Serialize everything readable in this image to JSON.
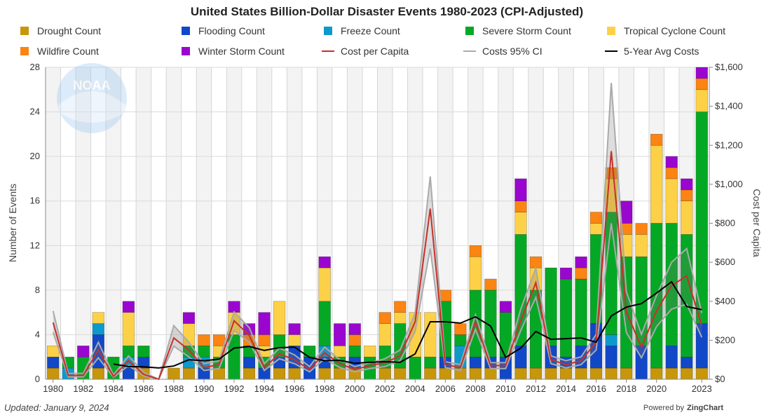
{
  "chart_data": {
    "type": "bar",
    "stacked": true,
    "title": "United States Billion-Dollar Disaster Events 1980-2023 (CPI-Adjusted)",
    "ylabel": "Number of Events",
    "y2label": "Cost per Capita",
    "ylim": [
      0,
      28
    ],
    "y2lim": [
      0,
      1600
    ],
    "yticks": [
      "0",
      "4",
      "8",
      "12",
      "16",
      "20",
      "24",
      "28"
    ],
    "y2ticks": [
      "$0",
      "$200",
      "$400",
      "$600",
      "$800",
      "$1,000",
      "$1,200",
      "$1,400",
      "$1,600"
    ],
    "xticklabels": [
      "1980",
      "1982",
      "1984",
      "1986",
      "1988",
      "1990",
      "1992",
      "1994",
      "1996",
      "1998",
      "2000",
      "2002",
      "2004",
      "2006",
      "2008",
      "2010",
      "2012",
      "2014",
      "2016",
      "2018",
      "2020",
      "2023"
    ],
    "grid": true,
    "legend": "top",
    "categories": [
      1980,
      1981,
      1982,
      1983,
      1984,
      1985,
      1986,
      1987,
      1988,
      1989,
      1990,
      1991,
      1992,
      1993,
      1994,
      1995,
      1996,
      1997,
      1998,
      1999,
      2000,
      2001,
      2002,
      2003,
      2004,
      2005,
      2006,
      2007,
      2008,
      2009,
      2010,
      2011,
      2012,
      2013,
      2014,
      2015,
      2016,
      2017,
      2018,
      2019,
      2020,
      2021,
      2022,
      2023
    ],
    "series": [
      {
        "name": "Drought Count",
        "color": "#c8960a",
        "values": [
          1,
          0,
          0,
          1,
          0,
          0,
          1,
          0,
          1,
          1,
          0,
          1,
          0,
          1,
          0,
          1,
          1,
          0,
          1,
          1,
          1,
          0,
          1,
          1,
          0,
          1,
          1,
          1,
          1,
          1,
          0,
          1,
          1,
          1,
          1,
          1,
          1,
          1,
          1,
          0,
          1,
          1,
          1,
          1
        ]
      },
      {
        "name": "Flooding Count",
        "color": "#1148c8",
        "values": [
          1,
          0,
          0,
          3,
          0,
          1,
          1,
          0,
          0,
          0,
          1,
          0,
          0,
          1,
          1,
          1,
          2,
          2,
          1,
          0,
          1,
          0,
          0,
          0,
          0,
          0,
          1,
          0,
          1,
          1,
          2,
          2,
          0,
          2,
          1,
          2,
          4,
          2,
          0,
          3,
          0,
          2,
          1,
          4
        ]
      },
      {
        "name": "Freeze Count",
        "color": "#0d99cc",
        "values": [
          0,
          1,
          0,
          1,
          0,
          1,
          0,
          0,
          0,
          1,
          1,
          0,
          0,
          0,
          0,
          0,
          0,
          0,
          1,
          0,
          0,
          0,
          0,
          0,
          0,
          0,
          0,
          2,
          0,
          0,
          0,
          0,
          0,
          0,
          0,
          0,
          0,
          1,
          0,
          0,
          0,
          0,
          0,
          0
        ]
      },
      {
        "name": "Severe Storm Count",
        "color": "#05a825",
        "values": [
          0,
          1,
          2,
          0,
          2,
          1,
          1,
          0,
          0,
          1,
          1,
          1,
          4,
          1,
          1,
          2,
          0,
          1,
          4,
          1,
          1,
          2,
          2,
          4,
          2,
          1,
          5,
          1,
          6,
          6,
          4,
          10,
          7,
          7,
          7,
          6,
          8,
          11,
          10,
          8,
          13,
          11,
          11,
          19
        ]
      },
      {
        "name": "Tropical Cyclone Count",
        "color": "#fdd147",
        "values": [
          1,
          0,
          0,
          1,
          0,
          3,
          0,
          0,
          0,
          2,
          0,
          1,
          2,
          0,
          1,
          3,
          1,
          0,
          3,
          1,
          0,
          1,
          2,
          1,
          4,
          4,
          0,
          0,
          3,
          0,
          0,
          2,
          2,
          0,
          0,
          0,
          1,
          3,
          2,
          2,
          7,
          4,
          3,
          2
        ]
      },
      {
        "name": "Wildfire Count",
        "color": "#fb8412",
        "values": [
          0,
          0,
          0,
          0,
          0,
          0,
          0,
          0,
          0,
          0,
          1,
          1,
          0,
          1,
          1,
          0,
          0,
          0,
          0,
          0,
          1,
          0,
          1,
          1,
          0,
          0,
          1,
          1,
          1,
          1,
          0,
          1,
          1,
          0,
          0,
          1,
          1,
          1,
          1,
          1,
          1,
          1,
          1,
          1
        ]
      },
      {
        "name": "Winter Storm Count",
        "color": "#9a06cf",
        "values": [
          0,
          0,
          1,
          0,
          0,
          1,
          0,
          0,
          0,
          1,
          0,
          0,
          1,
          1,
          2,
          0,
          1,
          0,
          1,
          2,
          1,
          0,
          0,
          0,
          0,
          0,
          0,
          0,
          0,
          0,
          1,
          2,
          0,
          0,
          1,
          1,
          0,
          0,
          2,
          0,
          0,
          1,
          1,
          1
        ]
      }
    ],
    "lines": [
      {
        "name": "Cost per Capita",
        "color": "#c8302a",
        "axis": "right",
        "values": [
          291,
          20,
          20,
          150,
          15,
          95,
          25,
          0,
          212,
          150,
          60,
          75,
          300,
          225,
          60,
          130,
          100,
          50,
          135,
          80,
          50,
          70,
          85,
          120,
          295,
          875,
          75,
          60,
          295,
          70,
          70,
          300,
          495,
          100,
          75,
          95,
          190,
          1170,
          345,
          165,
          350,
          480,
          530,
          275
        ]
      },
      {
        "name": "Costs 95% CI",
        "color": "#aaaaaa",
        "axis": "right",
        "upper": [
          350,
          30,
          30,
          190,
          22,
          120,
          35,
          0,
          275,
          190,
          80,
          95,
          345,
          265,
          80,
          160,
          125,
          65,
          165,
          100,
          65,
          85,
          105,
          150,
          340,
          1040,
          90,
          75,
          330,
          85,
          85,
          360,
          570,
          120,
          95,
          115,
          230,
          1520,
          450,
          230,
          430,
          600,
          670,
          340
        ],
        "lower": [
          240,
          12,
          12,
          110,
          10,
          70,
          18,
          0,
          170,
          115,
          45,
          55,
          250,
          190,
          45,
          105,
          80,
          38,
          105,
          60,
          38,
          55,
          65,
          95,
          245,
          670,
          60,
          45,
          255,
          55,
          55,
          250,
          420,
          80,
          58,
          75,
          150,
          800,
          240,
          110,
          270,
          360,
          385,
          215
        ]
      },
      {
        "name": "5-Year Avg Costs",
        "color": "#000000",
        "axis": "right",
        "start": 1984,
        "values": [
          78,
          65,
          64,
          58,
          68,
          100,
          95,
          103,
          160,
          168,
          148,
          162,
          165,
          112,
          95,
          97,
          82,
          87,
          90,
          87,
          130,
          295,
          295,
          288,
          320,
          273,
          112,
          160,
          245,
          205,
          208,
          212,
          190,
          325,
          370,
          388,
          442,
          500,
          373,
          357
        ]
      }
    ]
  },
  "footer": {
    "updated": "Updated: January 9, 2024",
    "powered": "Powered by",
    "brand": "ZingChart"
  },
  "logo": {
    "text": "NOAA"
  }
}
